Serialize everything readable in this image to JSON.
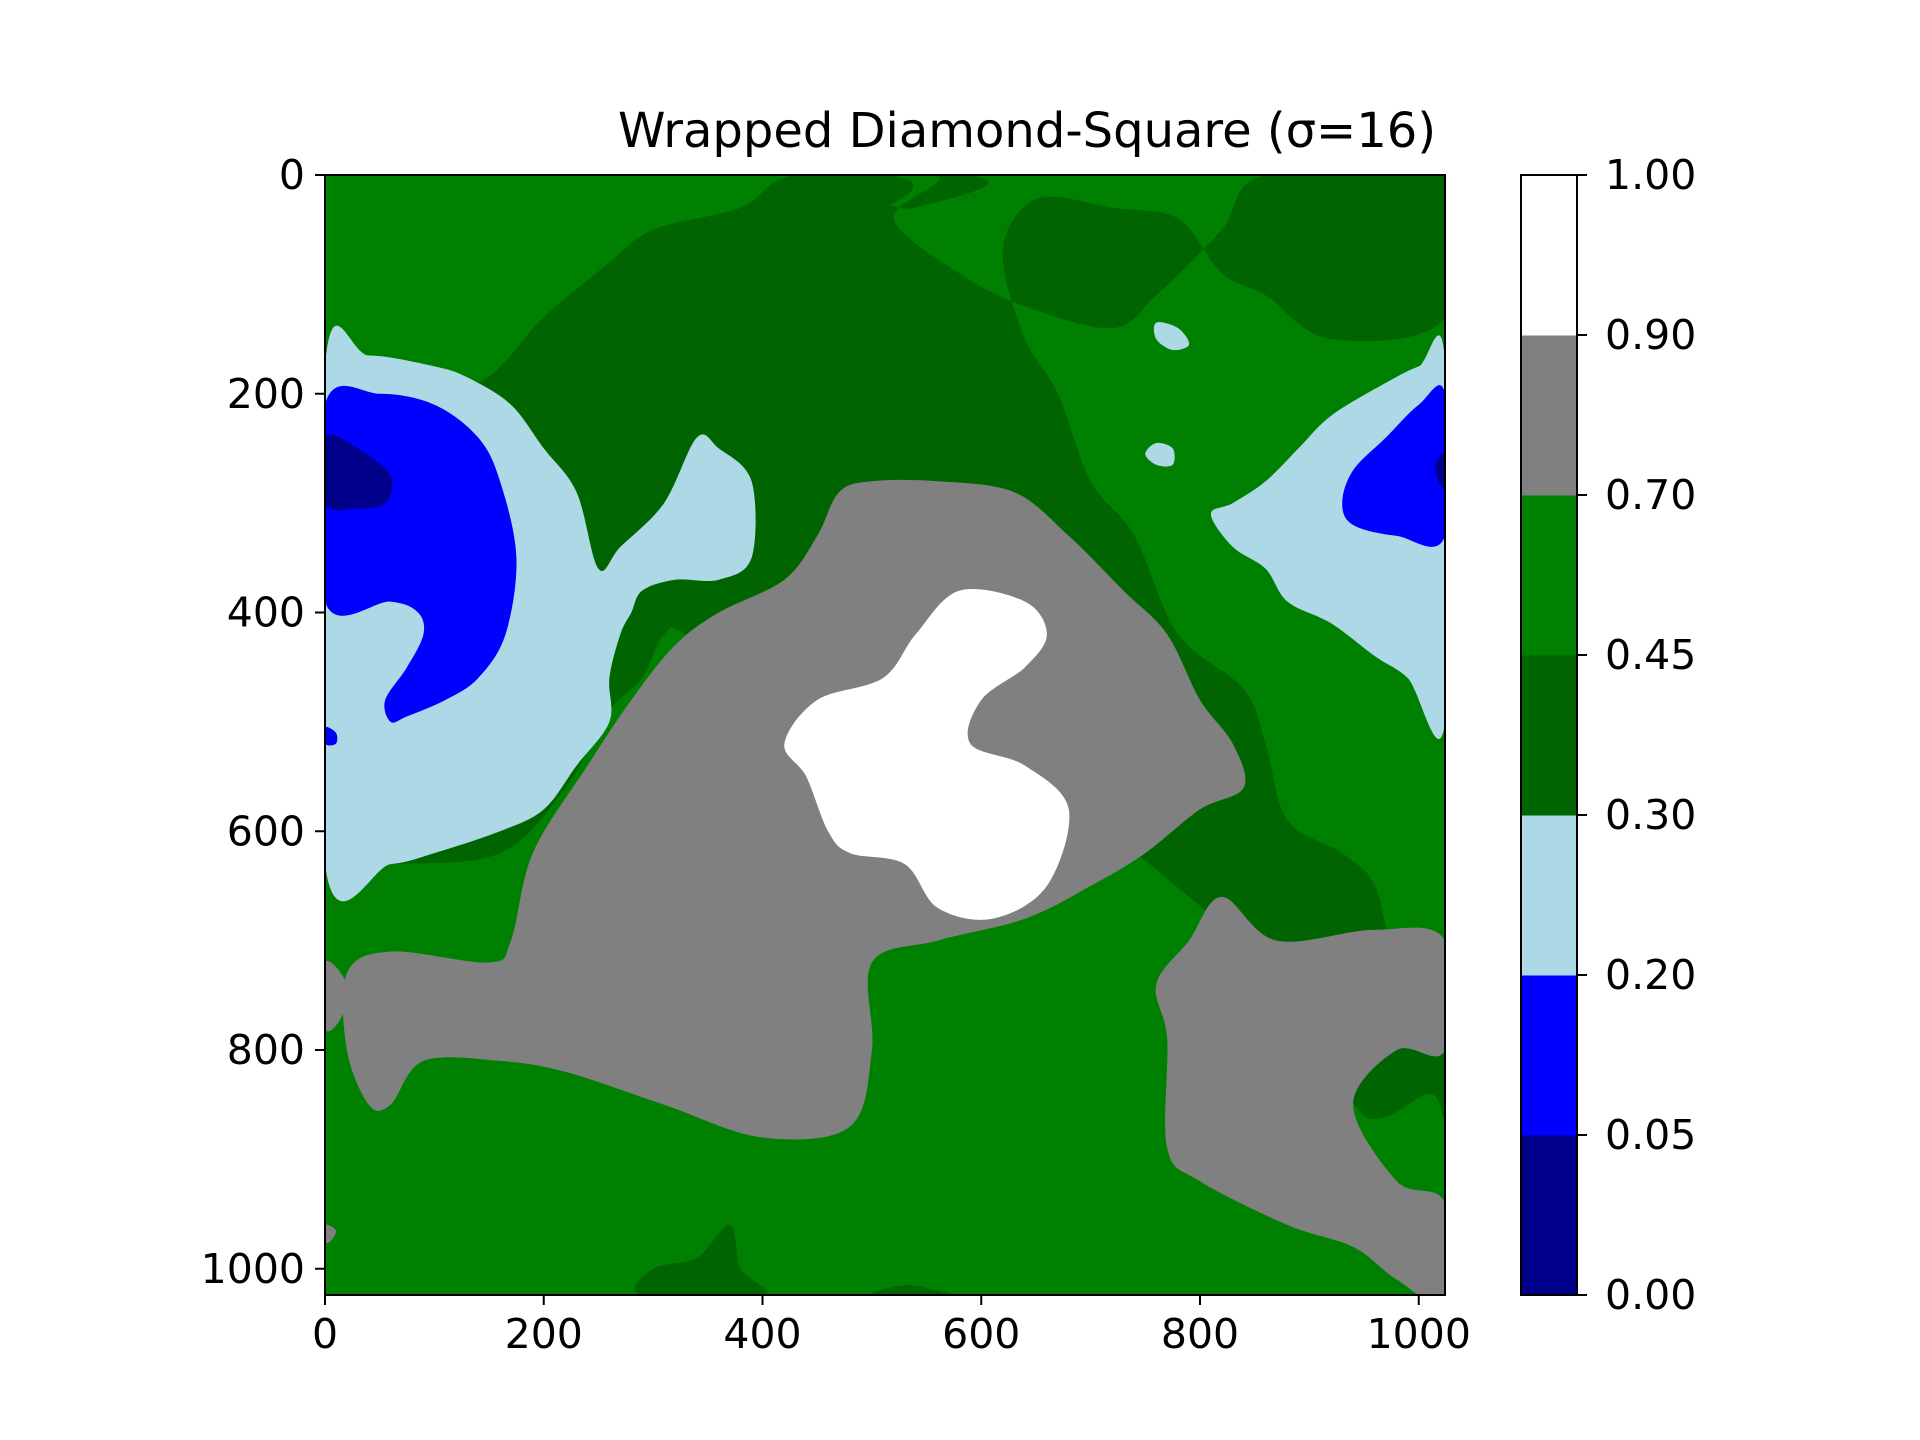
{
  "chart_data": {
    "type": "heatmap",
    "title": "Wrapped Diamond-Square (σ=16)",
    "xlabel": "",
    "ylabel": "",
    "x_range": [
      0,
      1024
    ],
    "y_range": [
      1024,
      0
    ],
    "x_ticks": [
      "0",
      "200",
      "400",
      "600",
      "800",
      "1000"
    ],
    "y_ticks": [
      "0",
      "200",
      "400",
      "600",
      "800",
      "1000"
    ],
    "grid": false,
    "colorbar": {
      "range": [
        0,
        1
      ],
      "ticks": [
        "0.00",
        "0.05",
        "0.20",
        "0.30",
        "0.45",
        "0.70",
        "0.90",
        "1.00"
      ],
      "levels": [
        {
          "from": 0.0,
          "to": 0.05,
          "color": "#00008b"
        },
        {
          "from": 0.05,
          "to": 0.2,
          "color": "#0000ff"
        },
        {
          "from": 0.2,
          "to": 0.3,
          "color": "#add8e6"
        },
        {
          "from": 0.3,
          "to": 0.45,
          "color": "#006400"
        },
        {
          "from": 0.45,
          "to": 0.7,
          "color": "#008000"
        },
        {
          "from": 0.7,
          "to": 0.9,
          "color": "#808080"
        },
        {
          "from": 0.9,
          "to": 1.0,
          "color": "#ffffff"
        }
      ]
    },
    "regions": [
      {
        "level": 0.3,
        "label": "dark-green band top",
        "points": [
          [
            100,
            0
          ],
          [
            580,
            0
          ],
          [
            540,
            30
          ],
          [
            490,
            30
          ],
          [
            460,
            110
          ],
          [
            400,
            130
          ],
          [
            390,
            200
          ],
          [
            300,
            220
          ],
          [
            250,
            330
          ],
          [
            240,
            380
          ],
          [
            270,
            400
          ],
          [
            330,
            420
          ],
          [
            360,
            460
          ],
          [
            420,
            480
          ],
          [
            430,
            560
          ],
          [
            460,
            590
          ],
          [
            490,
            640
          ],
          [
            560,
            680
          ],
          [
            600,
            690
          ],
          [
            660,
            640
          ],
          [
            700,
            600
          ],
          [
            740,
            620
          ],
          [
            790,
            660
          ],
          [
            860,
            720
          ],
          [
            900,
            760
          ],
          [
            950,
            860
          ],
          [
            1010,
            840
          ],
          [
            1024,
            860
          ],
          [
            1024,
            760
          ],
          [
            980,
            720
          ],
          [
            960,
            650
          ],
          [
            930,
            620
          ],
          [
            880,
            590
          ],
          [
            860,
            520
          ],
          [
            840,
            470
          ],
          [
            780,
            420
          ],
          [
            740,
            330
          ],
          [
            700,
            280
          ],
          [
            670,
            200
          ],
          [
            640,
            150
          ],
          [
            620,
            80
          ],
          [
            630,
            40
          ],
          [
            660,
            20
          ],
          [
            720,
            30
          ],
          [
            780,
            40
          ],
          [
            820,
            90
          ],
          [
            860,
            110
          ],
          [
            920,
            150
          ],
          [
            1024,
            130
          ],
          [
            1024,
            0
          ],
          [
            860,
            0
          ],
          [
            820,
            50
          ],
          [
            760,
            110
          ],
          [
            720,
            140
          ],
          [
            640,
            120
          ],
          [
            580,
            90
          ],
          [
            520,
            40
          ],
          [
            560,
            0
          ],
          [
            430,
            0
          ],
          [
            380,
            30
          ],
          [
            300,
            50
          ],
          [
            260,
            80
          ],
          [
            200,
            130
          ],
          [
            140,
            190
          ],
          [
            60,
            190
          ],
          [
            0,
            210
          ],
          [
            0,
            630
          ],
          [
            60,
            630
          ],
          [
            160,
            620
          ],
          [
            220,
            560
          ],
          [
            260,
            490
          ],
          [
            290,
            460
          ],
          [
            310,
            420
          ],
          [
            350,
            390
          ],
          [
            410,
            370
          ],
          [
            470,
            330
          ],
          [
            520,
            300
          ],
          [
            560,
            260
          ],
          [
            570,
            240
          ],
          [
            540,
            200
          ],
          [
            500,
            170
          ],
          [
            470,
            110
          ],
          [
            480,
            70
          ],
          [
            500,
            40
          ],
          [
            510,
            0
          ]
        ]
      },
      {
        "level": 0.2,
        "label": "light-blue west",
        "points": [
          [
            0,
            175
          ],
          [
            40,
            165
          ],
          [
            100,
            175
          ],
          [
            130,
            185
          ],
          [
            170,
            210
          ],
          [
            200,
            250
          ],
          [
            230,
            290
          ],
          [
            250,
            360
          ],
          [
            270,
            340
          ],
          [
            310,
            300
          ],
          [
            340,
            240
          ],
          [
            360,
            250
          ],
          [
            390,
            280
          ],
          [
            390,
            350
          ],
          [
            360,
            370
          ],
          [
            320,
            370
          ],
          [
            290,
            380
          ],
          [
            280,
            400
          ],
          [
            270,
            420
          ],
          [
            260,
            460
          ],
          [
            260,
            500
          ],
          [
            230,
            540
          ],
          [
            200,
            580
          ],
          [
            160,
            600
          ],
          [
            100,
            620
          ],
          [
            60,
            630
          ],
          [
            0,
            630
          ]
        ]
      },
      {
        "level": 0.05,
        "label": "blue west",
        "points": [
          [
            0,
            210
          ],
          [
            50,
            200
          ],
          [
            100,
            210
          ],
          [
            140,
            240
          ],
          [
            160,
            280
          ],
          [
            175,
            350
          ],
          [
            165,
            420
          ],
          [
            140,
            460
          ],
          [
            110,
            480
          ],
          [
            75,
            495
          ],
          [
            60,
            500
          ],
          [
            55,
            480
          ],
          [
            75,
            450
          ],
          [
            90,
            420
          ],
          [
            85,
            400
          ],
          [
            60,
            390
          ],
          [
            0,
            390
          ]
        ]
      },
      {
        "level": 0.0,
        "label": "navy west",
        "points": [
          [
            0,
            240
          ],
          [
            30,
            250
          ],
          [
            60,
            275
          ],
          [
            55,
            300
          ],
          [
            30,
            305
          ],
          [
            0,
            300
          ]
        ]
      },
      {
        "level": 0.05,
        "label": "blue dot west",
        "points": [
          [
            0,
            505
          ],
          [
            10,
            510
          ],
          [
            10,
            520
          ],
          [
            0,
            520
          ]
        ]
      },
      {
        "level": 0.2,
        "label": "light-blue east",
        "points": [
          [
            1024,
            170
          ],
          [
            1000,
            175
          ],
          [
            970,
            190
          ],
          [
            920,
            220
          ],
          [
            890,
            250
          ],
          [
            860,
            280
          ],
          [
            830,
            300
          ],
          [
            810,
            310
          ],
          [
            830,
            340
          ],
          [
            860,
            360
          ],
          [
            880,
            390
          ],
          [
            920,
            410
          ],
          [
            960,
            440
          ],
          [
            990,
            460
          ],
          [
            1024,
            500
          ]
        ]
      },
      {
        "level": 0.05,
        "label": "blue east",
        "points": [
          [
            1024,
            200
          ],
          [
            1000,
            210
          ],
          [
            970,
            240
          ],
          [
            940,
            270
          ],
          [
            930,
            300
          ],
          [
            940,
            320
          ],
          [
            980,
            330
          ],
          [
            1024,
            330
          ]
        ]
      },
      {
        "level": 0.0,
        "label": "navy east",
        "points": [
          [
            1024,
            255
          ],
          [
            1015,
            265
          ],
          [
            1018,
            280
          ],
          [
            1024,
            285
          ]
        ]
      },
      {
        "level": 0.2,
        "label": "light-blue dot a",
        "points": [
          [
            760,
            135
          ],
          [
            780,
            140
          ],
          [
            790,
            155
          ],
          [
            775,
            160
          ],
          [
            760,
            150
          ]
        ]
      },
      {
        "level": 0.2,
        "label": "light-blue dot b",
        "points": [
          [
            760,
            245
          ],
          [
            775,
            250
          ],
          [
            775,
            265
          ],
          [
            760,
            265
          ],
          [
            750,
            255
          ]
        ]
      },
      {
        "level": 0.7,
        "label": "gray central",
        "points": [
          [
            560,
            280
          ],
          [
            630,
            290
          ],
          [
            680,
            330
          ],
          [
            730,
            380
          ],
          [
            770,
            420
          ],
          [
            800,
            480
          ],
          [
            830,
            520
          ],
          [
            840,
            560
          ],
          [
            800,
            580
          ],
          [
            750,
            620
          ],
          [
            700,
            650
          ],
          [
            640,
            680
          ],
          [
            560,
            700
          ],
          [
            500,
            720
          ],
          [
            500,
            800
          ],
          [
            480,
            870
          ],
          [
            400,
            880
          ],
          [
            310,
            850
          ],
          [
            220,
            820
          ],
          [
            160,
            810
          ],
          [
            90,
            810
          ],
          [
            60,
            850
          ],
          [
            40,
            850
          ],
          [
            20,
            800
          ],
          [
            20,
            730
          ],
          [
            60,
            710
          ],
          [
            150,
            720
          ],
          [
            170,
            700
          ],
          [
            190,
            620
          ],
          [
            240,
            540
          ],
          [
            280,
            480
          ],
          [
            320,
            430
          ],
          [
            360,
            400
          ],
          [
            420,
            370
          ],
          [
            450,
            330
          ],
          [
            470,
            290
          ],
          [
            500,
            280
          ]
        ]
      },
      {
        "level": 0.9,
        "label": "white central",
        "points": [
          [
            580,
            380
          ],
          [
            640,
            390
          ],
          [
            660,
            420
          ],
          [
            640,
            450
          ],
          [
            600,
            480
          ],
          [
            590,
            520
          ],
          [
            640,
            540
          ],
          [
            680,
            580
          ],
          [
            660,
            650
          ],
          [
            610,
            680
          ],
          [
            560,
            670
          ],
          [
            530,
            630
          ],
          [
            480,
            620
          ],
          [
            460,
            600
          ],
          [
            440,
            550
          ],
          [
            420,
            520
          ],
          [
            450,
            480
          ],
          [
            510,
            460
          ],
          [
            540,
            420
          ]
        ]
      },
      {
        "level": 0.7,
        "label": "gray southeast",
        "points": [
          [
            820,
            660
          ],
          [
            870,
            700
          ],
          [
            960,
            690
          ],
          [
            1024,
            700
          ],
          [
            1024,
            800
          ],
          [
            980,
            800
          ],
          [
            940,
            850
          ],
          [
            980,
            920
          ],
          [
            1024,
            940
          ],
          [
            1024,
            1030
          ],
          [
            980,
            1010
          ],
          [
            940,
            980
          ],
          [
            880,
            960
          ],
          [
            800,
            920
          ],
          [
            770,
            890
          ],
          [
            770,
            790
          ],
          [
            760,
            740
          ],
          [
            790,
            700
          ]
        ]
      },
      {
        "level": 0.7,
        "label": "gray blob west",
        "points": [
          [
            0,
            720
          ],
          [
            20,
            740
          ],
          [
            15,
            770
          ],
          [
            0,
            780
          ]
        ]
      },
      {
        "level": 0.7,
        "label": "gray dot southwest",
        "points": [
          [
            0,
            960
          ],
          [
            10,
            965
          ],
          [
            5,
            975
          ],
          [
            0,
            975
          ]
        ]
      },
      {
        "level": 0.3,
        "label": "dark-green south",
        "points": [
          [
            290,
            1024
          ],
          [
            300,
            1000
          ],
          [
            340,
            990
          ],
          [
            370,
            960
          ],
          [
            380,
            1000
          ],
          [
            400,
            1024
          ]
        ]
      },
      {
        "level": 0.3,
        "label": "dark-green south tiny",
        "points": [
          [
            500,
            1024
          ],
          [
            530,
            1015
          ],
          [
            560,
            1020
          ],
          [
            570,
            1024
          ]
        ]
      }
    ]
  }
}
